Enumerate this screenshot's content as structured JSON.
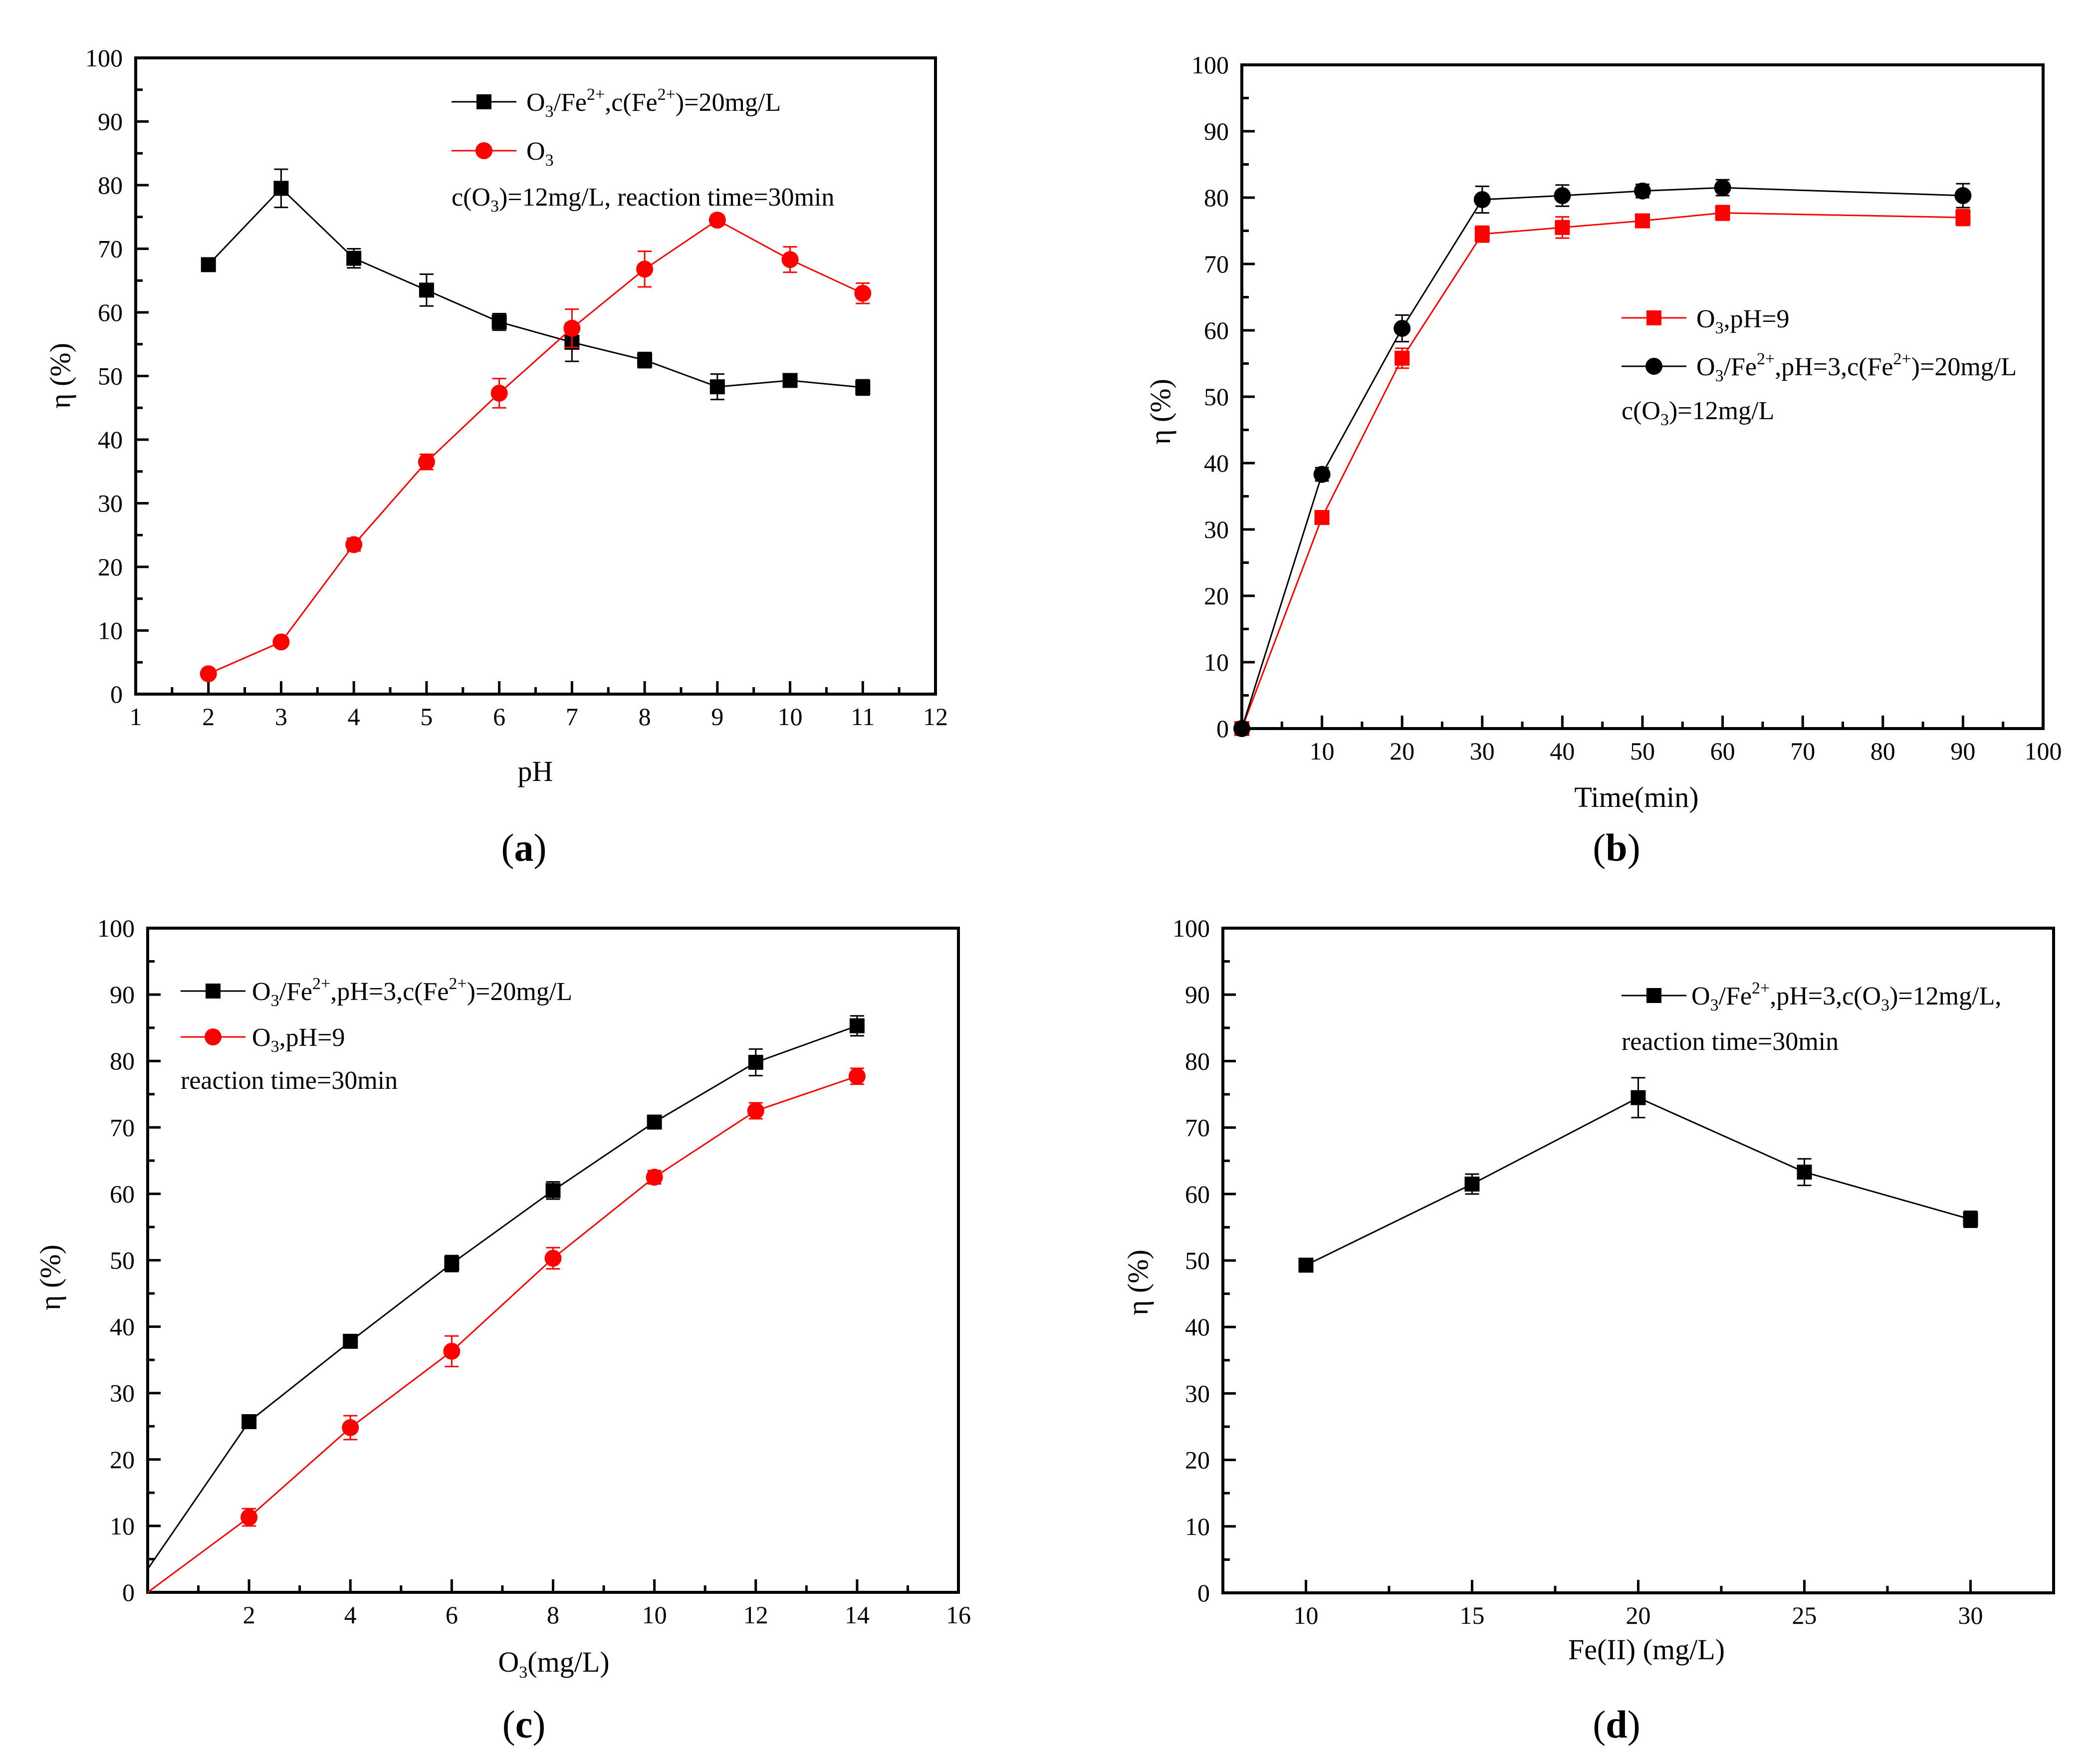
{
  "chart_data": [
    {
      "id": "a",
      "type": "line",
      "panel_label": {
        "open": "(",
        "letter": "a",
        "close": ")"
      },
      "xlabel": "pH",
      "ylabel": "η (%)",
      "xlim": [
        1,
        12
      ],
      "ylim": [
        0,
        100
      ],
      "xticks": [
        1,
        2,
        3,
        4,
        5,
        6,
        7,
        8,
        9,
        10,
        11,
        12
      ],
      "yticks": [
        0,
        10,
        20,
        30,
        40,
        50,
        60,
        70,
        80,
        90,
        100
      ],
      "grid": false,
      "legend_placement": "top-right",
      "series": [
        {
          "name": "O3/Fe2+,c(Fe2+)=20mg/L",
          "legend_parts": [
            "O",
            "3",
            "/Fe",
            "2+",
            ",c(Fe",
            "2+",
            ")=20mg/L"
          ],
          "color": "#000000",
          "marker": "square",
          "x": [
            2,
            3,
            4,
            5,
            6,
            7,
            8,
            9,
            10,
            11
          ],
          "values": [
            67.5,
            79.5,
            68.5,
            63.5,
            58.5,
            55.3,
            52.5,
            48.3,
            49.3,
            48.2
          ],
          "errors": [
            0.6,
            3.0,
            1.5,
            2.5,
            1.3,
            3.0,
            1.2,
            2.0,
            0.8,
            1.2
          ]
        },
        {
          "name": "O3",
          "legend_parts": [
            "O",
            "3"
          ],
          "color": "#ff0000",
          "marker": "circle",
          "x": [
            2,
            3,
            4,
            5,
            6,
            7,
            8,
            9,
            10,
            11
          ],
          "values": [
            3.2,
            8.2,
            23.5,
            36.5,
            47.3,
            57.5,
            66.8,
            74.5,
            68.3,
            63.0
          ],
          "errors": [
            0.5,
            0.6,
            1.0,
            1.2,
            2.3,
            3.0,
            2.8,
            0.8,
            2.0,
            1.6
          ]
        }
      ],
      "annotation_parts": [
        "c(O",
        "3",
        ")=12mg/L, reaction time=30min"
      ]
    },
    {
      "id": "b",
      "type": "line",
      "panel_label": {
        "open": "(",
        "letter": "b",
        "close": ")"
      },
      "xlabel": "Time(min)",
      "ylabel": "η (%)",
      "xlim": [
        0,
        100
      ],
      "ylim": [
        0,
        100
      ],
      "xticks": [
        10,
        20,
        30,
        40,
        50,
        60,
        70,
        80,
        90,
        100
      ],
      "yticks": [
        0,
        10,
        20,
        30,
        40,
        50,
        60,
        70,
        80,
        90,
        100
      ],
      "grid": false,
      "legend_placement": "center-right",
      "series": [
        {
          "name": "O3,pH=9",
          "legend_parts": [
            "O",
            "3",
            ",pH=9"
          ],
          "color": "#ff0000",
          "marker": "square",
          "x": [
            0,
            10,
            20,
            30,
            40,
            50,
            60,
            90
          ],
          "values": [
            0,
            31.8,
            55.8,
            74.5,
            75.5,
            76.5,
            77.7,
            77.0
          ],
          "errors": [
            0,
            1.0,
            1.5,
            1.2,
            1.6,
            0.6,
            1.1,
            1.2
          ]
        },
        {
          "name": "O3/Fe2+,pH=3,c(Fe2+)=20mg/L",
          "legend_parts": [
            "O",
            "3",
            "/Fe",
            "2+",
            ",pH=3,c(Fe",
            "2+",
            ")=20mg/L"
          ],
          "color": "#000000",
          "marker": "circle",
          "x": [
            0,
            10,
            20,
            30,
            40,
            50,
            60,
            90
          ],
          "values": [
            0,
            38.3,
            60.3,
            79.7,
            80.3,
            81.0,
            81.5,
            80.3
          ],
          "errors": [
            0,
            1.0,
            2.0,
            2.0,
            1.6,
            1.0,
            1.2,
            1.8
          ]
        }
      ],
      "annotation_parts": [
        "c(O",
        "3",
        ")=12mg/L"
      ]
    },
    {
      "id": "c",
      "type": "line",
      "panel_label": {
        "open": "(",
        "letter": "c",
        "close": ")"
      },
      "xlabel_parts": [
        "O",
        "3",
        "(mg/L)"
      ],
      "ylabel": "η (%)",
      "xlim": [
        0,
        16
      ],
      "ylim": [
        0,
        100
      ],
      "xticks": [
        2,
        4,
        6,
        8,
        10,
        12,
        14,
        16
      ],
      "yticks": [
        0,
        10,
        20,
        30,
        40,
        50,
        60,
        70,
        80,
        90,
        100
      ],
      "grid": false,
      "legend_placement": "top-left",
      "series": [
        {
          "name": "O3/Fe2+,pH=3,c(Fe2+)=20mg/L",
          "legend_parts": [
            "O",
            "3",
            "/Fe",
            "2+",
            ",pH=3,c(Fe",
            "2+",
            ")=20mg/L"
          ],
          "color": "#000000",
          "marker": "square",
          "x": [
            0,
            2,
            4,
            6,
            8,
            10,
            12,
            14
          ],
          "values": [
            3.5,
            25.7,
            37.8,
            49.5,
            60.5,
            70.8,
            79.8,
            85.3
          ],
          "errors": [
            0,
            0.6,
            1.0,
            1.2,
            1.3,
            1.0,
            2.0,
            1.5
          ],
          "marker_from": 1
        },
        {
          "name": "O3,pH=9",
          "legend_parts": [
            "O",
            "3",
            ",pH=9"
          ],
          "color": "#ff0000",
          "marker": "circle",
          "x": [
            0,
            2,
            4,
            6,
            8,
            10,
            12,
            14
          ],
          "values": [
            0,
            11.3,
            24.8,
            36.3,
            50.3,
            62.5,
            72.5,
            77.7
          ],
          "errors": [
            0,
            1.3,
            1.8,
            2.3,
            1.6,
            1.0,
            1.2,
            1.2
          ],
          "marker_from": 1
        }
      ],
      "annotation_parts": [
        "reaction time=30min"
      ]
    },
    {
      "id": "d",
      "type": "line",
      "panel_label": {
        "open": "(",
        "letter": "d",
        "close": ")"
      },
      "xlabel": "Fe(II) (mg/L)",
      "ylabel": "η (%)",
      "xlim": [
        7.5,
        32.5
      ],
      "ylim": [
        0,
        100
      ],
      "xticks": [
        10,
        15,
        20,
        25,
        30
      ],
      "yticks": [
        0,
        10,
        20,
        30,
        40,
        50,
        60,
        70,
        80,
        90,
        100
      ],
      "grid": false,
      "legend_placement": "top-right",
      "series": [
        {
          "name": "O3/Fe2+,pH=3,c(O3)=12mg/L,",
          "legend_parts": [
            "O",
            "3",
            "/Fe",
            "2+",
            ",pH=3,c(O",
            "3",
            ")=12mg/L,"
          ],
          "color": "#000000",
          "marker": "square",
          "x": [
            10,
            15,
            20,
            25,
            30
          ],
          "values": [
            49.3,
            61.5,
            74.5,
            63.3,
            56.2
          ],
          "errors": [
            1.0,
            1.5,
            3.0,
            2.0,
            1.2
          ]
        }
      ],
      "annotation_parts": [
        "reaction time=30min"
      ]
    }
  ]
}
